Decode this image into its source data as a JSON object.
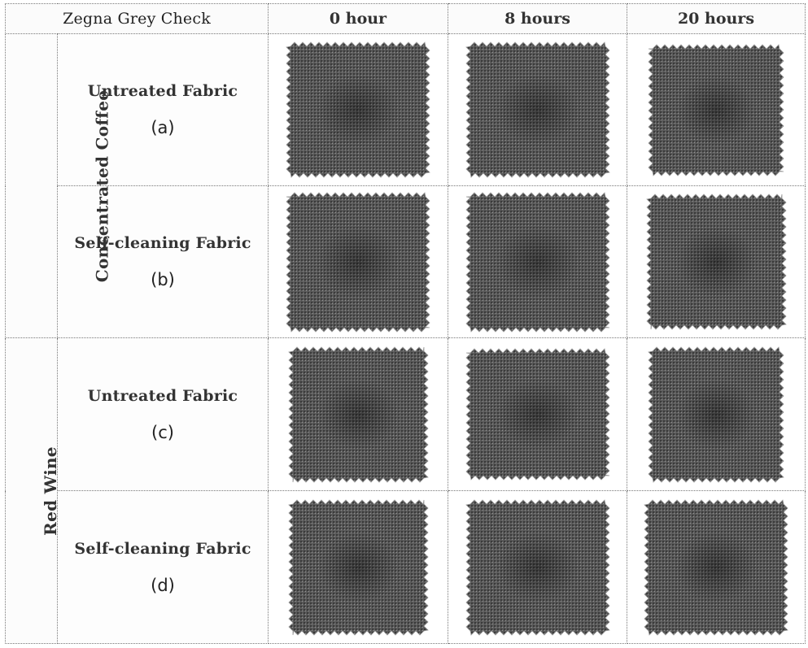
{
  "table": {
    "title": "Zegna Grey Check",
    "columns": [
      "0 hour",
      "8 hours",
      "20 hours"
    ],
    "groups": [
      {
        "name": "Concentrated Coffee",
        "rows": [
          {
            "label": "Untreated Fabric",
            "id": "(a)"
          },
          {
            "label": "Self-cleaning Fabric",
            "id": "(b)"
          }
        ]
      },
      {
        "name": "Red Wine",
        "rows": [
          {
            "label": "Untreated Fabric",
            "id": "(c)"
          },
          {
            "label": "Self-cleaning Fabric",
            "id": "(d)"
          }
        ]
      }
    ]
  },
  "colors": {
    "fabric_dark": "#3a3a3a",
    "fabric_mid": "#5a5a5a",
    "fabric_light": "#9a9a9a",
    "border": "#777777"
  }
}
